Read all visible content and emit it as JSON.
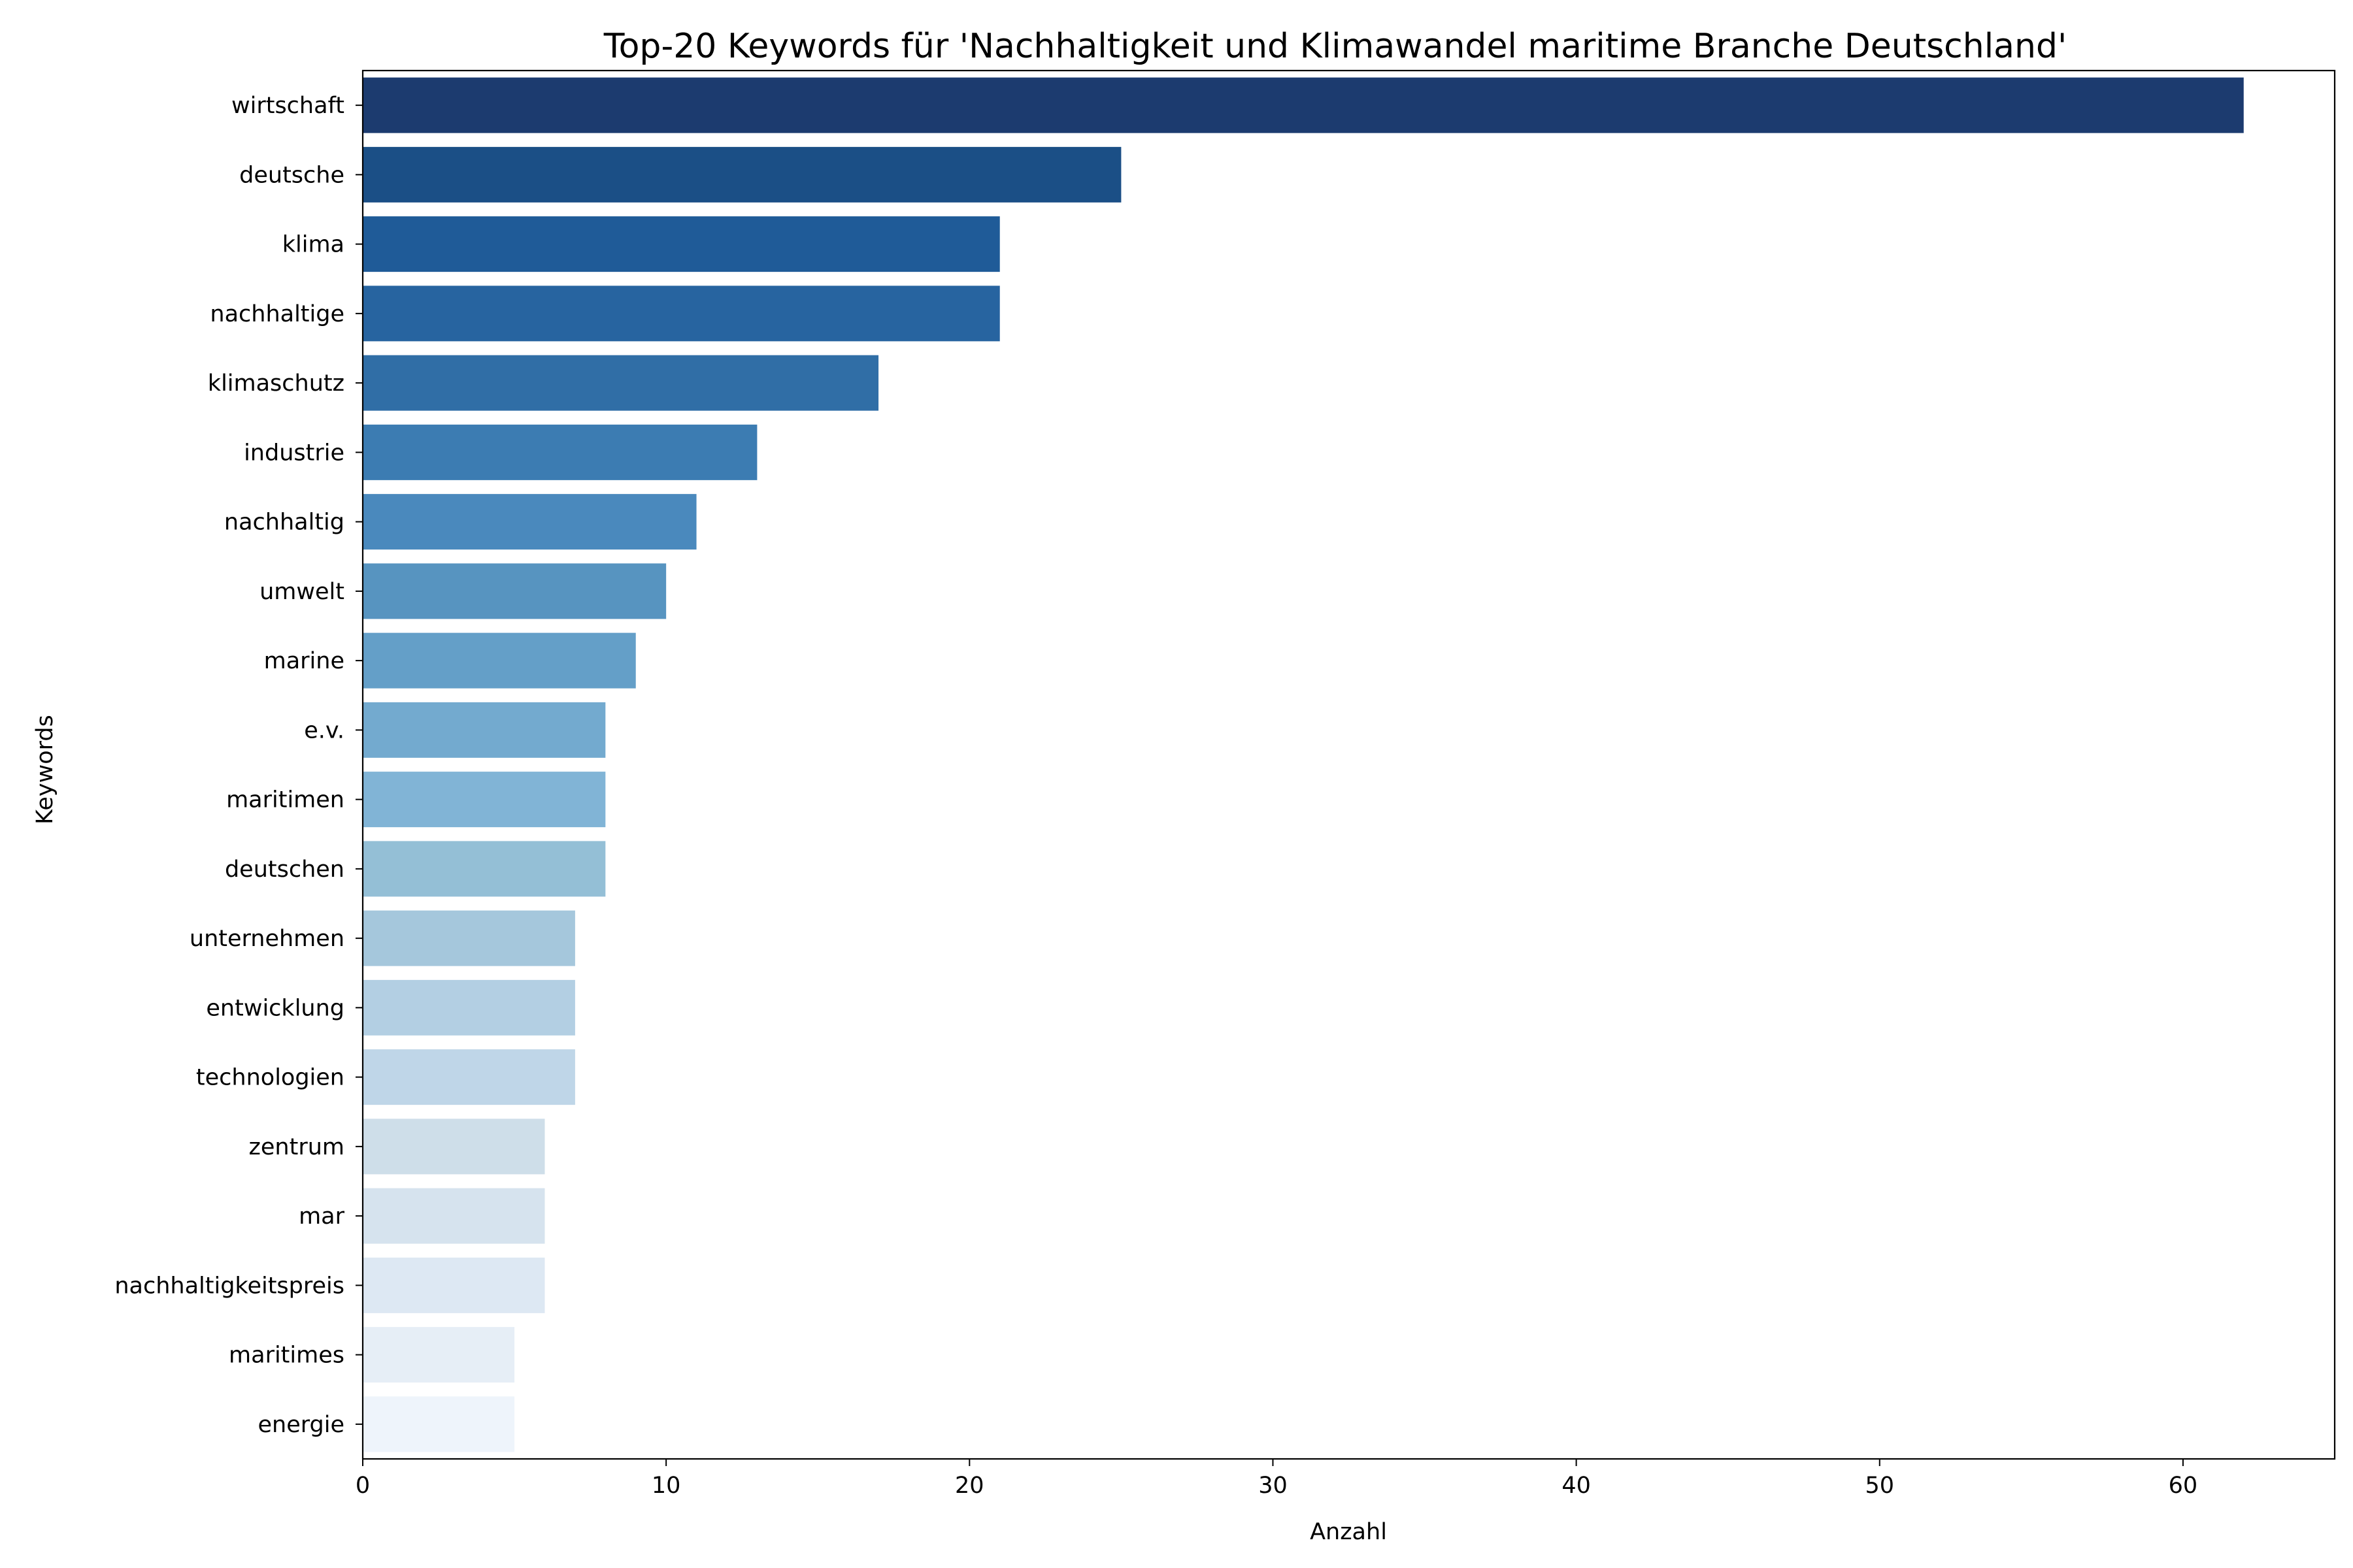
{
  "chart_data": {
    "type": "bar",
    "orientation": "horizontal",
    "title": "Top-20 Keywords für 'Nachhaltigkeit und Klimawandel maritime Branche Deutschland'",
    "xlabel": "Anzahl",
    "ylabel": "Keywords",
    "xlim": [
      0,
      65
    ],
    "xticks": [
      0,
      10,
      20,
      30,
      40,
      50,
      60
    ],
    "grid": false,
    "categories": [
      "wirtschaft",
      "deutsche",
      "klima",
      "nachhaltige",
      "klimaschutz",
      "industrie",
      "nachhaltig",
      "umwelt",
      "marine",
      "e.v.",
      "maritimen",
      "deutschen",
      "unternehmen",
      "entwicklung",
      "technologien",
      "zentrum",
      "mar",
      "nachhaltigkeitspreis",
      "maritimes",
      "energie"
    ],
    "values": [
      62,
      25,
      21,
      21,
      17,
      13,
      11,
      10,
      9,
      8,
      8,
      8,
      7,
      7,
      7,
      6,
      6,
      6,
      5,
      5
    ],
    "colors": [
      "#1c3b6f",
      "#1b4f86",
      "#1f5b98",
      "#2764a0",
      "#306ea6",
      "#3c7cb2",
      "#4a89bd",
      "#5794c0",
      "#649fc8",
      "#73aacf",
      "#81b4d6",
      "#94bfd6",
      "#a5c7dc",
      "#b3cfe3",
      "#bfd6e8",
      "#cedee9",
      "#d6e3ee",
      "#dde8f3",
      "#e6eef6",
      "#eef4fb"
    ]
  }
}
